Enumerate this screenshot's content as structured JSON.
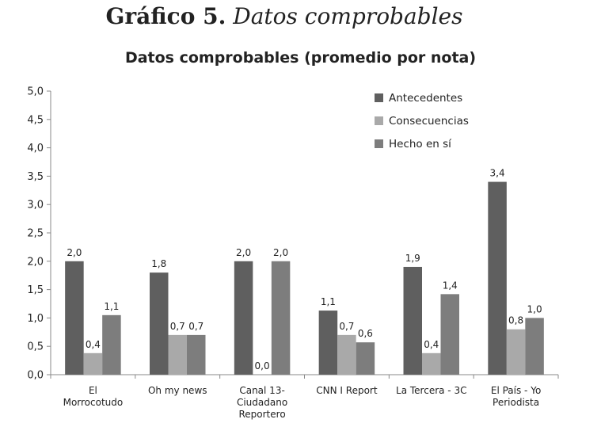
{
  "heading": {
    "number": "Gráfico 5.",
    "subtitle": "Datos comprobables"
  },
  "chart_data": {
    "type": "bar",
    "title": "Datos comprobables (promedio por nota)",
    "xlabel": "",
    "ylabel": "",
    "ylim": [
      0,
      5
    ],
    "yticks": [
      "0,0",
      "0,5",
      "1,0",
      "1,5",
      "2,0",
      "2,5",
      "3,0",
      "3,5",
      "4,0",
      "4,5",
      "5,0"
    ],
    "categories": [
      [
        "El",
        "Morrocotudo"
      ],
      [
        "Oh my news"
      ],
      [
        "Canal 13-",
        "Ciudadano",
        "Reportero"
      ],
      [
        "CNN I Report"
      ],
      [
        "La Tercera - 3C"
      ],
      [
        "El País - Yo",
        "Periodista"
      ]
    ],
    "series": [
      {
        "name": "Antecedentes",
        "color": "#5f5f5f",
        "values": [
          2.0,
          1.8,
          2.0,
          1.13,
          1.9,
          3.4
        ],
        "labels": [
          "2,0",
          "1,8",
          "2,0",
          "1,1",
          "1,9",
          "3,4"
        ]
      },
      {
        "name": "Consecuencias",
        "color": "#a9a9a9",
        "values": [
          0.38,
          0.7,
          0.0,
          0.7,
          0.38,
          0.8
        ],
        "labels": [
          "0,4",
          "0,7",
          "0,0",
          "0,7",
          "0,4",
          "0,8"
        ]
      },
      {
        "name": "Hecho en sí",
        "color": "#7d7d7d",
        "values": [
          1.05,
          0.7,
          2.0,
          0.57,
          1.42,
          1.0
        ],
        "labels": [
          "1,1",
          "0,7",
          "2,0",
          "0,6",
          "1,4",
          "1,0"
        ]
      }
    ],
    "legend": "top-right",
    "grid": false
  }
}
